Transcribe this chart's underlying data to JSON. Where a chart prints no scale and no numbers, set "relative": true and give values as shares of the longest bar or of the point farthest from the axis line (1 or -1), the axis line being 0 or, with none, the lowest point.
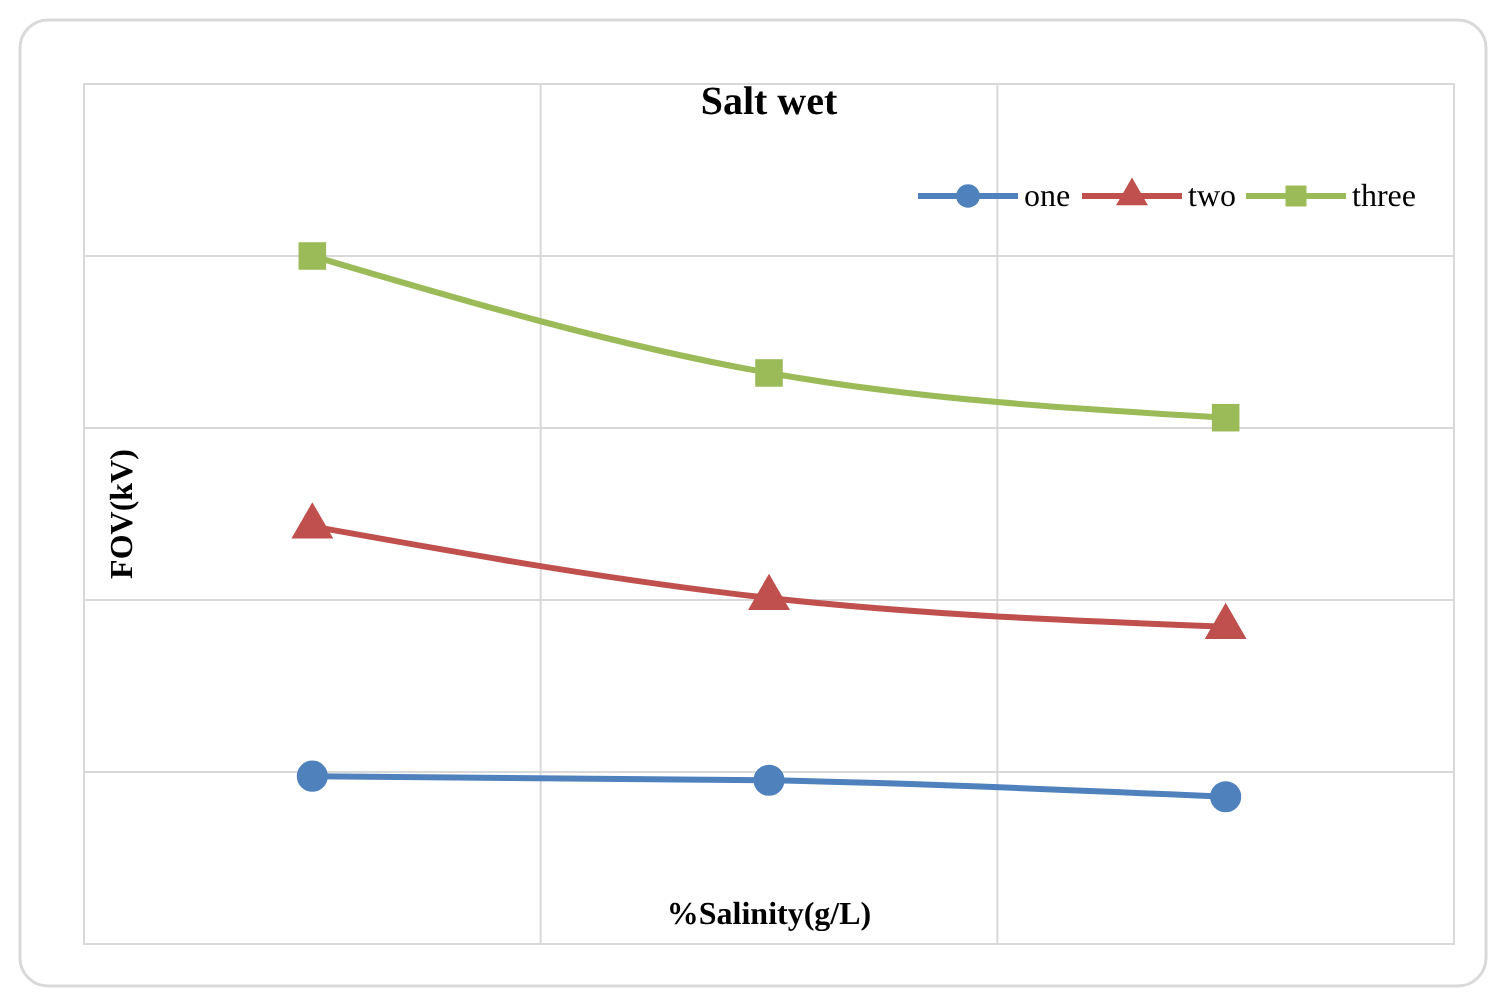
{
  "chart_data": {
    "type": "line",
    "title": "Salt wet",
    "xlabel": "%Salinity(g/L)",
    "ylabel": "FOV(kV)",
    "categories": [
      null,
      null,
      null
    ],
    "relative": true,
    "grid": true,
    "legend": "top right",
    "series": [
      {
        "name": "one",
        "color": "#4f81bd",
        "marker": "circle",
        "values": [
          0.244,
          0.238,
          0.214
        ]
      },
      {
        "name": "two",
        "color": "#c0504d",
        "marker": "triangle",
        "values": [
          0.607,
          0.503,
          0.461
        ]
      },
      {
        "name": "three",
        "color": "#9bbb59",
        "marker": "square",
        "values": [
          1,
          0.83,
          0.765
        ]
      }
    ]
  }
}
